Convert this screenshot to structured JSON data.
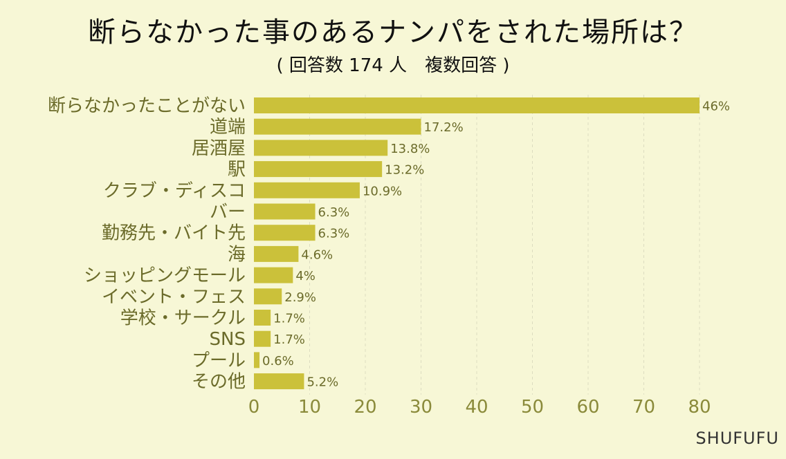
{
  "title": "断らなかった事のあるナンパをされた場所は？",
  "subtitle": "( 回答数 174 人　複数回答 )",
  "brand": "SHUFUFU",
  "colors": {
    "bar": "#cbc13a",
    "background": "#f7f7d6",
    "label": "#6b6b2a",
    "grid": "#dcdcc0"
  },
  "chart_data": {
    "type": "bar",
    "orientation": "horizontal",
    "categories": [
      "断らなかったことがない",
      "道端",
      "居酒屋",
      "駅",
      "クラブ・ディスコ",
      "バー",
      "勤務先・バイト先",
      "海",
      "ショッピングモール",
      "イベント・フェス",
      "学校・サークル",
      "SNS",
      "プール",
      "その他"
    ],
    "values": [
      80,
      30,
      24,
      23,
      19,
      11,
      11,
      8,
      7,
      5,
      3,
      3,
      1,
      9
    ],
    "value_labels": [
      "46%",
      "17.2%",
      "13.8%",
      "13.2%",
      "10.9%",
      "6.3%",
      "6.3%",
      "4.6%",
      "4%",
      "2.9%",
      "1.7%",
      "1.7%",
      "0.6%",
      "5.2%"
    ],
    "xlim": [
      0,
      80
    ],
    "xticks": [
      "0",
      "10",
      "20",
      "30",
      "40",
      "50",
      "60",
      "70",
      "80"
    ],
    "grid": "vertical dashed"
  }
}
